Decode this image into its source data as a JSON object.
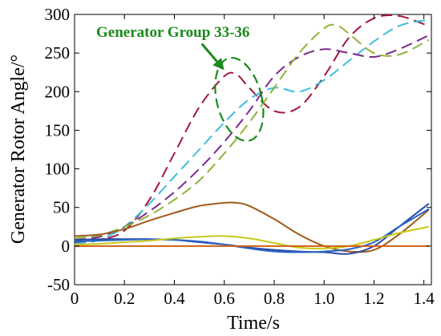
{
  "chart_data": {
    "type": "line",
    "title": "",
    "xlabel": "Time/s",
    "ylabel": "Generator Rotor Angle/°",
    "xlim": [
      0,
      1.43
    ],
    "ylim": [
      -50,
      300
    ],
    "xticks": [
      0,
      0.2,
      0.4,
      0.6,
      0.8,
      1.0,
      1.2,
      1.4
    ],
    "xtick_labels": [
      "0",
      "0.2",
      "0.4",
      "0.6",
      "0.8",
      "1.0",
      "1.2",
      "1.4"
    ],
    "yticks": [
      -50,
      0,
      50,
      100,
      150,
      200,
      250,
      300
    ],
    "ytick_labels": [
      "-50",
      "0",
      "50",
      "100",
      "150",
      "200",
      "250",
      "300"
    ],
    "grid": false,
    "annotation": {
      "text": "Generator Group 33-36",
      "color": "#1a8a1a",
      "arrow_color": "#1a8a1a",
      "ellipse_center": [
        0.66,
        190
      ],
      "ellipse_radii": [
        0.09,
        55
      ],
      "ellipse_rotation_deg": -14,
      "arrow_from": [
        0.51,
        262
      ],
      "arrow_to": [
        0.6,
        228
      ]
    },
    "series": [
      {
        "style": "dashed",
        "color": "#a0183a",
        "x": [
          0,
          0.1,
          0.2,
          0.3,
          0.4,
          0.5,
          0.6,
          0.65,
          0.7,
          0.8,
          0.9,
          1.0,
          1.1,
          1.2,
          1.3,
          1.42
        ],
        "y": [
          5,
          8,
          20,
          60,
          120,
          180,
          220,
          222,
          205,
          175,
          180,
          220,
          270,
          295,
          298,
          285
        ]
      },
      {
        "style": "dashed",
        "color": "#3bbfe0",
        "x": [
          0,
          0.1,
          0.2,
          0.3,
          0.4,
          0.5,
          0.6,
          0.7,
          0.8,
          0.9,
          1.0,
          1.1,
          1.2,
          1.3,
          1.4,
          1.42
        ],
        "y": [
          3,
          8,
          25,
          55,
          90,
          125,
          160,
          190,
          205,
          200,
          215,
          240,
          265,
          285,
          292,
          288
        ]
      },
      {
        "style": "dashed",
        "color": "#7a2a8a",
        "x": [
          0,
          0.1,
          0.2,
          0.3,
          0.4,
          0.5,
          0.6,
          0.7,
          0.8,
          0.9,
          1.0,
          1.1,
          1.2,
          1.3,
          1.42
        ],
        "y": [
          8,
          12,
          25,
          45,
          70,
          100,
          135,
          175,
          220,
          245,
          255,
          250,
          245,
          255,
          273
        ]
      },
      {
        "style": "dashed",
        "color": "#8fb33a",
        "x": [
          0,
          0.1,
          0.2,
          0.3,
          0.4,
          0.5,
          0.6,
          0.7,
          0.8,
          0.9,
          1.0,
          1.05,
          1.1,
          1.2,
          1.3,
          1.42
        ],
        "y": [
          10,
          14,
          25,
          40,
          60,
          85,
          120,
          160,
          205,
          250,
          282,
          286,
          275,
          250,
          248,
          267
        ]
      },
      {
        "style": "solid",
        "color": "#9c5a1a",
        "x": [
          0,
          0.1,
          0.2,
          0.3,
          0.4,
          0.5,
          0.6,
          0.65,
          0.7,
          0.8,
          0.9,
          1.0,
          1.1,
          1.2,
          1.3,
          1.42
        ],
        "y": [
          13,
          15,
          22,
          33,
          43,
          52,
          56,
          56,
          52,
          35,
          15,
          0,
          -7,
          -5,
          15,
          47
        ]
      },
      {
        "style": "solid",
        "color": "#2a4aa0",
        "x": [
          0,
          0.1,
          0.2,
          0.3,
          0.4,
          0.5,
          0.6,
          0.7,
          0.8,
          0.9,
          1.0,
          1.1,
          1.2,
          1.3,
          1.42
        ],
        "y": [
          8,
          9,
          9,
          9,
          8,
          5,
          2,
          -2,
          -5,
          -7,
          -8,
          -10,
          0,
          25,
          55
        ]
      },
      {
        "style": "solid",
        "color": "#2a64c8",
        "x": [
          0,
          0.1,
          0.2,
          0.3,
          0.4,
          0.5,
          0.6,
          0.7,
          0.8,
          0.9,
          1.0,
          1.1,
          1.2,
          1.3,
          1.42
        ],
        "y": [
          6,
          7,
          8,
          9,
          8,
          6,
          2,
          -3,
          -7,
          -8,
          -7,
          -4,
          5,
          25,
          48
        ]
      },
      {
        "style": "solid",
        "color": "#c8c81a",
        "x": [
          0,
          0.1,
          0.2,
          0.3,
          0.4,
          0.5,
          0.6,
          0.7,
          0.8,
          0.9,
          1.0,
          1.1,
          1.2,
          1.3,
          1.42
        ],
        "y": [
          2,
          3,
          5,
          7,
          10,
          12,
          13,
          10,
          4,
          -2,
          -3,
          0,
          8,
          17,
          25
        ]
      },
      {
        "style": "solid",
        "color": "#d06010",
        "x": [
          0,
          0.2,
          0.4,
          0.6,
          0.8,
          1.0,
          1.2,
          1.42
        ],
        "y": [
          0,
          0,
          0,
          0,
          0,
          0,
          0,
          0
        ]
      }
    ]
  }
}
